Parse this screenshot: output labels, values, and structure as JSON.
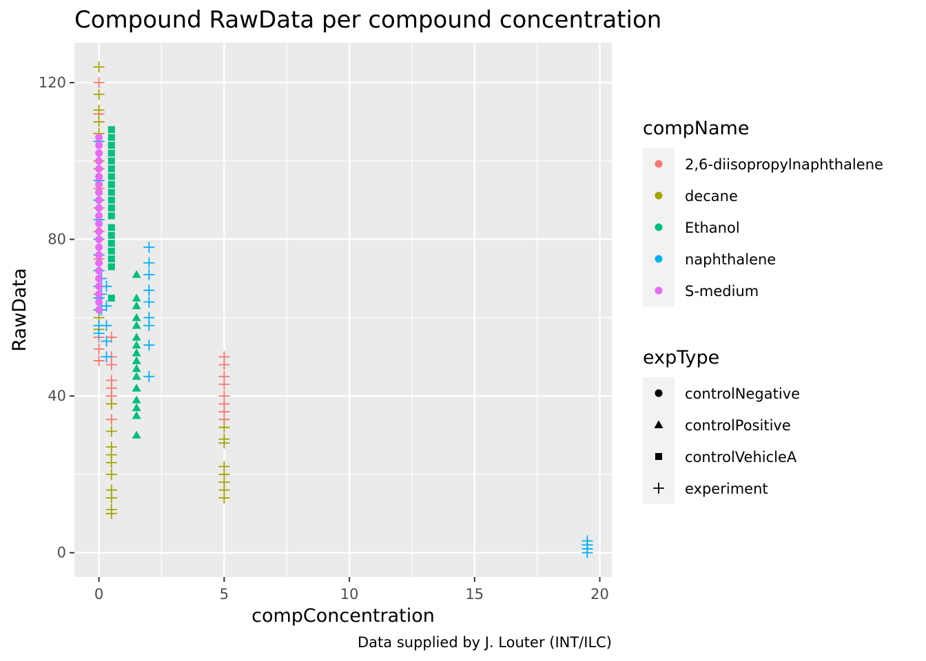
{
  "chart_data": {
    "type": "scatter",
    "title": "Compound RawData per compound concentration",
    "xlabel": "compConcentration",
    "ylabel": "RawData",
    "caption": "Data supplied by J. Louter (INT/ILC)",
    "xlim": [
      -0.98,
      20.48
    ],
    "ylim": [
      -6.2,
      130.2
    ],
    "x_ticks": [
      0,
      5,
      10,
      15,
      20
    ],
    "x_tick_labels": [
      "0",
      "5",
      "10",
      "15",
      "20"
    ],
    "y_ticks": [
      0,
      40,
      80,
      120
    ],
    "y_tick_labels": [
      "0",
      "40",
      "80",
      "120"
    ],
    "grid": true,
    "legend_placement": "right",
    "legends": [
      {
        "title": "compName",
        "entries": [
          {
            "label": "2,6-diisopropylnaphthalene",
            "color": "#F8766D"
          },
          {
            "label": "decane",
            "color": "#A3A500"
          },
          {
            "label": "Ethanol",
            "color": "#00BF7D"
          },
          {
            "label": "naphthalene",
            "color": "#00B0F6"
          },
          {
            "label": "S-medium",
            "color": "#E76BF3"
          }
        ]
      },
      {
        "title": "expType",
        "entries": [
          {
            "label": "controlNegative",
            "shape": "circle"
          },
          {
            "label": "controlPositive",
            "shape": "triangle"
          },
          {
            "label": "controlVehicleA",
            "shape": "square"
          },
          {
            "label": "experiment",
            "shape": "plus"
          }
        ]
      }
    ],
    "series": [
      {
        "compName": "2,6-diisopropylnaphthalene",
        "expType": "experiment",
        "color": "#F8766D",
        "points": [
          [
            0,
            120
          ],
          [
            0,
            112
          ],
          [
            0,
            105
          ],
          [
            0,
            98
          ],
          [
            0,
            93
          ],
          [
            0,
            88
          ],
          [
            0,
            82
          ],
          [
            0,
            75
          ],
          [
            0,
            68
          ],
          [
            0,
            62
          ],
          [
            0,
            58
          ],
          [
            0,
            55
          ],
          [
            0,
            52
          ],
          [
            0,
            49
          ],
          [
            0.5,
            55
          ],
          [
            0.5,
            50
          ],
          [
            0.5,
            48
          ],
          [
            0.5,
            44
          ],
          [
            0.5,
            42
          ],
          [
            0.5,
            40
          ],
          [
            0.5,
            38
          ],
          [
            0.5,
            34
          ],
          [
            5,
            50
          ],
          [
            5,
            48
          ],
          [
            5,
            45
          ],
          [
            5,
            43
          ],
          [
            5,
            40
          ],
          [
            5,
            38
          ],
          [
            5,
            36
          ],
          [
            5,
            34
          ]
        ]
      },
      {
        "compName": "decane",
        "expType": "experiment",
        "color": "#A3A500",
        "points": [
          [
            0,
            124
          ],
          [
            0,
            117
          ],
          [
            0,
            113
          ],
          [
            0,
            110
          ],
          [
            0,
            107
          ],
          [
            0,
            100
          ],
          [
            0,
            95
          ],
          [
            0,
            90
          ],
          [
            0,
            85
          ],
          [
            0,
            80
          ],
          [
            0,
            72
          ],
          [
            0,
            66
          ],
          [
            0,
            60
          ],
          [
            0,
            57
          ],
          [
            0.5,
            38
          ],
          [
            0.5,
            31
          ],
          [
            0.5,
            27
          ],
          [
            0.5,
            25
          ],
          [
            0.5,
            23
          ],
          [
            0.5,
            20
          ],
          [
            0.5,
            16
          ],
          [
            0.5,
            14
          ],
          [
            0.5,
            11
          ],
          [
            0.5,
            10
          ],
          [
            5,
            32
          ],
          [
            5,
            29
          ],
          [
            5,
            28
          ],
          [
            5,
            22
          ],
          [
            5,
            20
          ],
          [
            5,
            18
          ],
          [
            5,
            16
          ],
          [
            5,
            14
          ]
        ]
      },
      {
        "compName": "Ethanol",
        "expType": "controlVehicleA",
        "color": "#00BF7D",
        "points": [
          [
            0.5,
            108
          ],
          [
            0.5,
            106
          ],
          [
            0.5,
            104
          ],
          [
            0.5,
            102
          ],
          [
            0.5,
            100
          ],
          [
            0.5,
            98
          ],
          [
            0.5,
            96
          ],
          [
            0.5,
            94
          ],
          [
            0.5,
            92
          ],
          [
            0.5,
            90
          ],
          [
            0.5,
            88
          ],
          [
            0.5,
            86
          ],
          [
            0.5,
            83
          ],
          [
            0.5,
            81
          ],
          [
            0.5,
            79
          ],
          [
            0.5,
            77
          ],
          [
            0.5,
            75
          ],
          [
            0.5,
            73
          ],
          [
            0.5,
            65
          ]
        ]
      },
      {
        "compName": "Ethanol",
        "expType": "controlPositive",
        "color": "#00BF7D",
        "points": [
          [
            1.5,
            71
          ],
          [
            1.5,
            65
          ],
          [
            1.5,
            63
          ],
          [
            1.5,
            60
          ],
          [
            1.5,
            58
          ],
          [
            1.5,
            55
          ],
          [
            1.5,
            53
          ],
          [
            1.5,
            51
          ],
          [
            1.5,
            49
          ],
          [
            1.5,
            47
          ],
          [
            1.5,
            45
          ],
          [
            1.5,
            42
          ],
          [
            1.5,
            39
          ],
          [
            1.5,
            37
          ],
          [
            1.5,
            35
          ],
          [
            1.5,
            30
          ]
        ]
      },
      {
        "compName": "naphthalene",
        "expType": "experiment",
        "color": "#00B0F6",
        "points": [
          [
            0,
            105
          ],
          [
            0,
            95
          ],
          [
            0,
            90
          ],
          [
            0,
            85
          ],
          [
            0,
            80
          ],
          [
            0,
            76
          ],
          [
            0,
            72
          ],
          [
            0,
            68
          ],
          [
            0,
            65
          ],
          [
            0,
            62
          ],
          [
            0,
            58
          ],
          [
            0,
            56
          ],
          [
            0.1,
            70
          ],
          [
            0.1,
            66
          ],
          [
            0.1,
            62
          ],
          [
            0.3,
            68
          ],
          [
            0.3,
            63
          ],
          [
            0.3,
            58
          ],
          [
            0.3,
            54
          ],
          [
            0.3,
            50
          ],
          [
            2,
            78
          ],
          [
            2,
            74
          ],
          [
            2,
            71
          ],
          [
            2,
            67
          ],
          [
            2,
            64
          ],
          [
            2,
            60
          ],
          [
            2,
            58
          ],
          [
            2,
            53
          ],
          [
            2,
            45
          ],
          [
            19.5,
            3
          ],
          [
            19.5,
            2
          ],
          [
            19.5,
            1
          ],
          [
            19.5,
            0
          ]
        ]
      },
      {
        "compName": "S-medium",
        "expType": "controlNegative",
        "color": "#E76BF3",
        "points": [
          [
            0,
            106
          ],
          [
            0,
            104
          ],
          [
            0,
            102
          ],
          [
            0,
            100
          ],
          [
            0,
            98
          ],
          [
            0,
            96
          ],
          [
            0,
            94
          ],
          [
            0,
            92
          ],
          [
            0,
            90
          ],
          [
            0,
            88
          ],
          [
            0,
            86
          ],
          [
            0,
            84
          ],
          [
            0,
            82
          ],
          [
            0,
            80
          ],
          [
            0,
            78
          ],
          [
            0,
            76
          ],
          [
            0,
            74
          ],
          [
            0,
            72
          ],
          [
            0,
            70
          ],
          [
            0,
            68
          ],
          [
            0,
            66
          ],
          [
            0,
            64
          ],
          [
            0,
            62
          ]
        ]
      }
    ]
  }
}
